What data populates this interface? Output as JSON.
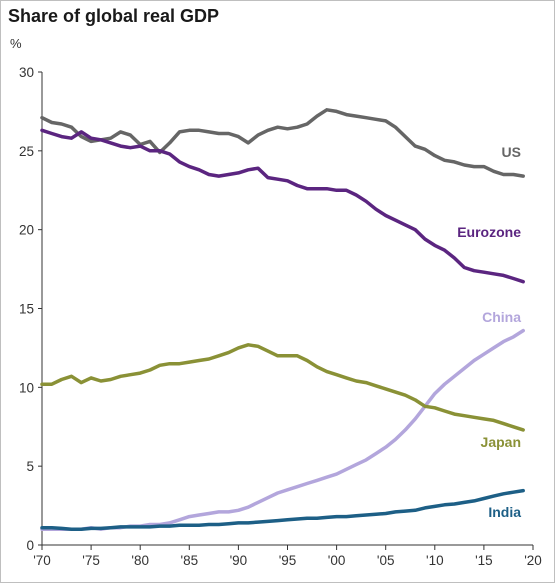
{
  "chart_data": {
    "type": "line",
    "title": "Share of global real GDP",
    "ylabel": "%",
    "xlabel": "",
    "xlim": [
      1970,
      2020
    ],
    "ylim": [
      0,
      30
    ],
    "grid": false,
    "legend": "inline-labels",
    "xticks": [
      {
        "value": 1970,
        "label": "'70"
      },
      {
        "value": 1975,
        "label": "'75"
      },
      {
        "value": 1980,
        "label": "'80"
      },
      {
        "value": 1985,
        "label": "'85"
      },
      {
        "value": 1990,
        "label": "'90"
      },
      {
        "value": 1995,
        "label": "'95"
      },
      {
        "value": 2000,
        "label": "'00"
      },
      {
        "value": 2005,
        "label": "'05"
      },
      {
        "value": 2010,
        "label": "'10"
      },
      {
        "value": 2015,
        "label": "'15"
      },
      {
        "value": 2020,
        "label": "'20"
      }
    ],
    "yticks": [
      {
        "value": 0,
        "label": "0"
      },
      {
        "value": 5,
        "label": "5"
      },
      {
        "value": 10,
        "label": "10"
      },
      {
        "value": 15,
        "label": "15"
      },
      {
        "value": 20,
        "label": "20"
      },
      {
        "value": 25,
        "label": "25"
      },
      {
        "value": 30,
        "label": "30"
      }
    ],
    "x": [
      1970,
      1971,
      1972,
      1973,
      1974,
      1975,
      1976,
      1977,
      1978,
      1979,
      1980,
      1981,
      1982,
      1983,
      1984,
      1985,
      1986,
      1987,
      1988,
      1989,
      1990,
      1991,
      1992,
      1993,
      1994,
      1995,
      1996,
      1997,
      1998,
      1999,
      2000,
      2001,
      2002,
      2003,
      2004,
      2005,
      2006,
      2007,
      2008,
      2009,
      2010,
      2011,
      2012,
      2013,
      2014,
      2015,
      2016,
      2017,
      2018,
      2019
    ],
    "series": [
      {
        "name": "US",
        "color": "#666666",
        "values": [
          27.1,
          26.8,
          26.7,
          26.5,
          25.9,
          25.6,
          25.7,
          25.8,
          26.2,
          26.0,
          25.4,
          25.6,
          24.9,
          25.5,
          26.2,
          26.3,
          26.3,
          26.2,
          26.1,
          26.1,
          25.9,
          25.5,
          26.0,
          26.3,
          26.5,
          26.4,
          26.5,
          26.7,
          27.2,
          27.6,
          27.5,
          27.3,
          27.2,
          27.1,
          27.0,
          26.9,
          26.5,
          25.9,
          25.3,
          25.1,
          24.7,
          24.4,
          24.3,
          24.1,
          24.0,
          24.0,
          23.7,
          23.5,
          23.5,
          23.4
        ]
      },
      {
        "name": "Eurozone",
        "color": "#5b2580",
        "values": [
          26.3,
          26.1,
          25.9,
          25.8,
          26.2,
          25.8,
          25.7,
          25.5,
          25.3,
          25.2,
          25.3,
          25.0,
          25.0,
          24.8,
          24.3,
          24.0,
          23.8,
          23.5,
          23.4,
          23.5,
          23.6,
          23.8,
          23.9,
          23.3,
          23.2,
          23.1,
          22.8,
          22.6,
          22.6,
          22.6,
          22.5,
          22.5,
          22.2,
          21.8,
          21.3,
          20.9,
          20.6,
          20.3,
          20.0,
          19.4,
          19.0,
          18.7,
          18.2,
          17.6,
          17.4,
          17.3,
          17.2,
          17.1,
          16.9,
          16.7
        ]
      },
      {
        "name": "China",
        "color": "#b3a6dc",
        "values": [
          1.0,
          1.0,
          1.0,
          1.0,
          1.0,
          1.1,
          1.0,
          1.1,
          1.1,
          1.2,
          1.2,
          1.3,
          1.3,
          1.4,
          1.6,
          1.8,
          1.9,
          2.0,
          2.1,
          2.1,
          2.2,
          2.4,
          2.7,
          3.0,
          3.3,
          3.5,
          3.7,
          3.9,
          4.1,
          4.3,
          4.5,
          4.8,
          5.1,
          5.4,
          5.8,
          6.2,
          6.7,
          7.3,
          8.0,
          8.8,
          9.6,
          10.2,
          10.7,
          11.2,
          11.7,
          12.1,
          12.5,
          12.9,
          13.2,
          13.6
        ]
      },
      {
        "name": "Japan",
        "color": "#8a9136",
        "values": [
          10.2,
          10.2,
          10.5,
          10.7,
          10.3,
          10.6,
          10.4,
          10.5,
          10.7,
          10.8,
          10.9,
          11.1,
          11.4,
          11.5,
          11.5,
          11.6,
          11.7,
          11.8,
          12.0,
          12.2,
          12.5,
          12.7,
          12.6,
          12.3,
          12.0,
          12.0,
          12.0,
          11.7,
          11.3,
          11.0,
          10.8,
          10.6,
          10.4,
          10.3,
          10.1,
          9.9,
          9.7,
          9.5,
          9.2,
          8.8,
          8.7,
          8.5,
          8.3,
          8.2,
          8.1,
          8.0,
          7.9,
          7.7,
          7.5,
          7.3
        ]
      },
      {
        "name": "India",
        "color": "#1d5f86",
        "values": [
          1.1,
          1.1,
          1.05,
          1.0,
          1.0,
          1.05,
          1.05,
          1.1,
          1.15,
          1.15,
          1.15,
          1.15,
          1.2,
          1.2,
          1.25,
          1.25,
          1.25,
          1.3,
          1.3,
          1.35,
          1.4,
          1.4,
          1.45,
          1.5,
          1.55,
          1.6,
          1.65,
          1.7,
          1.7,
          1.75,
          1.8,
          1.8,
          1.85,
          1.9,
          1.95,
          2.0,
          2.1,
          2.15,
          2.2,
          2.35,
          2.45,
          2.55,
          2.6,
          2.7,
          2.8,
          2.95,
          3.1,
          3.25,
          3.35,
          3.45
        ]
      }
    ]
  }
}
